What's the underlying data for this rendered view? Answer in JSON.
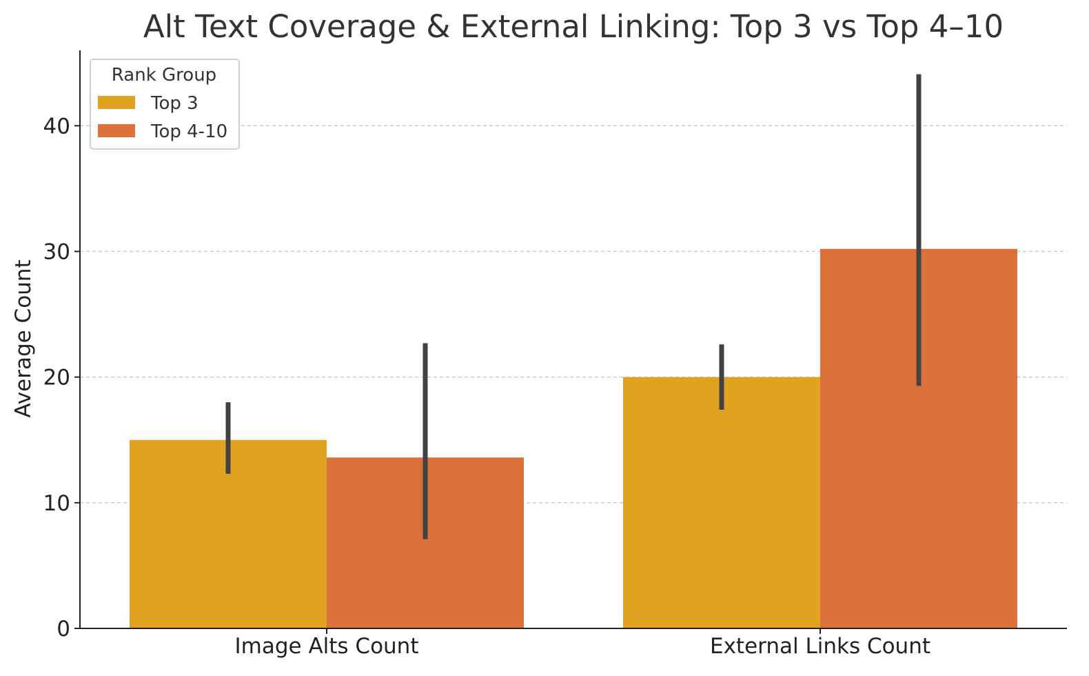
{
  "chart_data": {
    "type": "bar",
    "title": "Alt Text Coverage & External Linking: Top 3 vs Top 4–10",
    "xlabel": "",
    "ylabel": "Average Count",
    "ylim": [
      0,
      46
    ],
    "yticks": [
      0,
      10,
      20,
      30,
      40
    ],
    "categories": [
      "Image Alts Count",
      "External Links Count"
    ],
    "series": [
      {
        "name": "Top 3",
        "color": "#dfa321",
        "values": [
          15.0,
          20.0
        ],
        "error_low": [
          12.3,
          17.4
        ],
        "error_high": [
          18.0,
          22.6
        ]
      },
      {
        "name": "Top 4-10",
        "color": "#dc713b",
        "values": [
          13.6,
          30.2
        ],
        "error_low": [
          7.1,
          19.3
        ],
        "error_high": [
          22.7,
          44.1
        ]
      }
    ],
    "error_bar_color": "#424242",
    "grid": "horizontal dashed",
    "legend": {
      "title": "Rank Group",
      "placement": "top-left"
    }
  }
}
